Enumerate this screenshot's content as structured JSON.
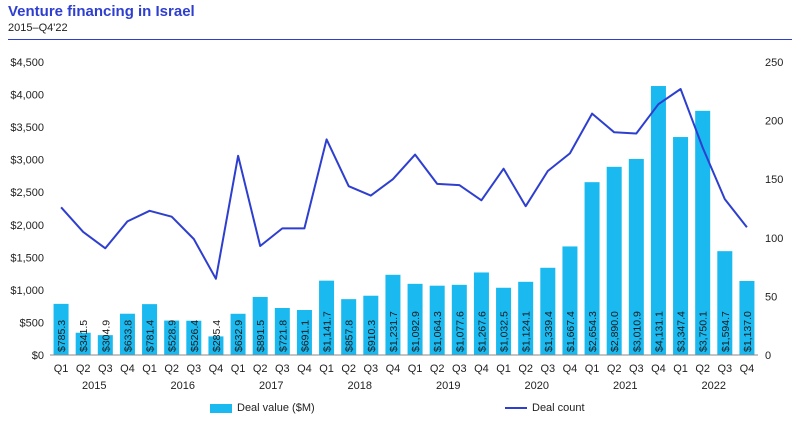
{
  "header": {
    "title": "Venture financing in Israel",
    "subtitle": "2015–Q4'22"
  },
  "colors": {
    "bar": "#1AB9F0",
    "line": "#2E3FCF",
    "title": "#2E3FCF"
  },
  "chart_data": {
    "type": "bar",
    "title": "Venture financing in Israel",
    "subtitle": "2015–Q4'22",
    "categories": [
      "Q1",
      "Q2",
      "Q3",
      "Q4",
      "Q1",
      "Q2",
      "Q3",
      "Q4",
      "Q1",
      "Q2",
      "Q3",
      "Q4",
      "Q1",
      "Q2",
      "Q3",
      "Q4",
      "Q1",
      "Q2",
      "Q3",
      "Q4",
      "Q1",
      "Q2",
      "Q3",
      "Q4",
      "Q1",
      "Q2",
      "Q3",
      "Q4",
      "Q1",
      "Q2",
      "Q3",
      "Q4"
    ],
    "years": [
      "2015",
      "2016",
      "2017",
      "2018",
      "2019",
      "2020",
      "2021",
      "2022"
    ],
    "series": [
      {
        "name": "Deal value ($M)",
        "type": "bar",
        "axis": "left",
        "values": [
          785.3,
          341.5,
          304.9,
          633.8,
          781.4,
          528.9,
          526.4,
          285.4,
          632.9,
          891.5,
          721.8,
          691.1,
          1141.7,
          857.8,
          910.3,
          1231.7,
          1092.9,
          1064.3,
          1077.6,
          1267.6,
          1032.5,
          1124.1,
          1339.4,
          1667.4,
          2654.3,
          2890.0,
          3010.9,
          4131.1,
          3347.4,
          3750.1,
          1594.7,
          1137.0
        ],
        "labels": [
          "$785.3",
          "$341.5",
          "$304.9",
          "$633.8",
          "$781.4",
          "$528.9",
          "$526.4",
          "$285.4",
          "$632.9",
          "$891.5",
          "$721.8",
          "$691.1",
          "$1,141.7",
          "$857.8",
          "$910.3",
          "$1,231.7",
          "$1,092.9",
          "$1,064.3",
          "$1,077.6",
          "$1,267.6",
          "$1,032.5",
          "$1,124.1",
          "$1,339.4",
          "$1,667.4",
          "$2,654.3",
          "$2,890.0",
          "$3,010.9",
          "$4,131.1",
          "$3,347.4",
          "$3,750.1",
          "$1,594.7",
          "$1,137.0"
        ]
      },
      {
        "name": "Deal count",
        "type": "line",
        "axis": "right",
        "values": [
          126,
          105,
          91,
          114,
          123,
          118,
          99,
          65,
          170,
          93,
          108,
          108,
          184,
          144,
          136,
          150,
          171,
          146,
          145,
          132,
          159,
          127,
          157,
          172,
          206,
          190,
          189,
          214,
          227,
          177,
          133,
          109
        ]
      }
    ],
    "y_left": {
      "ylim": [
        0,
        4500
      ],
      "ticks": [
        "$0",
        "$500",
        "$1,000",
        "$1,500",
        "$2,000",
        "$2,500",
        "$3,000",
        "$3,500",
        "$4,000",
        "$4,500"
      ]
    },
    "y_right": {
      "ylim": [
        0,
        250
      ],
      "ticks": [
        "0",
        "50",
        "100",
        "150",
        "200",
        "250"
      ]
    },
    "legend": {
      "placement": "bottom",
      "items": [
        "Deal value ($M)",
        "Deal count"
      ]
    }
  }
}
